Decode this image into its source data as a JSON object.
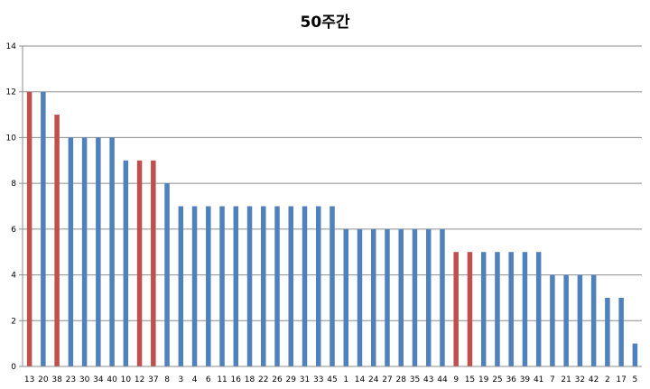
{
  "chart_data": {
    "type": "bar",
    "title": "50주간",
    "xlabel": "",
    "ylabel": "",
    "ylim": [
      0,
      14
    ],
    "yticks": [
      0,
      2,
      4,
      6,
      8,
      10,
      12,
      14
    ],
    "grid": true,
    "legend": "none",
    "colors": {
      "default": "#4f81bd",
      "highlight": "#c0504d"
    },
    "categories": [
      "13",
      "20",
      "38",
      "23",
      "30",
      "34",
      "40",
      "10",
      "12",
      "37",
      "8",
      "3",
      "4",
      "6",
      "11",
      "16",
      "18",
      "22",
      "26",
      "29",
      "31",
      "33",
      "45",
      "1",
      "14",
      "24",
      "27",
      "28",
      "35",
      "43",
      "44",
      "9",
      "15",
      "19",
      "25",
      "36",
      "39",
      "41",
      "7",
      "21",
      "32",
      "42",
      "2",
      "17",
      "5"
    ],
    "values": [
      12,
      12,
      11,
      10,
      10,
      10,
      10,
      9,
      9,
      9,
      8,
      7,
      7,
      7,
      7,
      7,
      7,
      7,
      7,
      7,
      7,
      7,
      7,
      6,
      6,
      6,
      6,
      6,
      6,
      6,
      6,
      5,
      5,
      5,
      5,
      5,
      5,
      5,
      4,
      4,
      4,
      4,
      3,
      3,
      1
    ],
    "bar_colors": [
      "#c0504d",
      "#4f81bd",
      "#c0504d",
      "#4f81bd",
      "#4f81bd",
      "#4f81bd",
      "#4f81bd",
      "#4f81bd",
      "#c0504d",
      "#c0504d",
      "#4f81bd",
      "#4f81bd",
      "#4f81bd",
      "#4f81bd",
      "#4f81bd",
      "#4f81bd",
      "#4f81bd",
      "#4f81bd",
      "#4f81bd",
      "#4f81bd",
      "#4f81bd",
      "#4f81bd",
      "#4f81bd",
      "#4f81bd",
      "#4f81bd",
      "#4f81bd",
      "#4f81bd",
      "#4f81bd",
      "#4f81bd",
      "#4f81bd",
      "#4f81bd",
      "#c0504d",
      "#c0504d",
      "#4f81bd",
      "#4f81bd",
      "#4f81bd",
      "#4f81bd",
      "#4f81bd",
      "#4f81bd",
      "#4f81bd",
      "#4f81bd",
      "#4f81bd",
      "#4f81bd",
      "#4f81bd",
      "#4f81bd"
    ]
  }
}
